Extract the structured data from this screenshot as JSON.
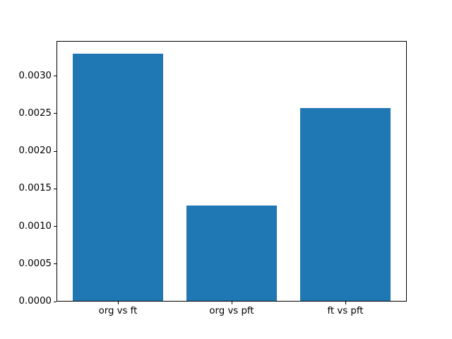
{
  "figure": {
    "background": "#ffffff"
  },
  "chart_data": {
    "type": "bar",
    "categories": [
      "org vs ft",
      "org vs pft",
      "ft vs pft"
    ],
    "values": [
      0.0033,
      0.00128,
      0.00257
    ],
    "title": "",
    "xlabel": "",
    "ylabel": "",
    "ylim": [
      0,
      0.003465
    ],
    "yticks": [
      0.0,
      0.0005,
      0.001,
      0.0015,
      0.002,
      0.0025,
      0.003
    ],
    "ytick_labels": [
      "0.0000",
      "0.0005",
      "0.0010",
      "0.0015",
      "0.0020",
      "0.0025",
      "0.0030"
    ],
    "bar_width": 0.8,
    "bar_color": "#1f77b4",
    "spine_color": "#000000",
    "text_color": "#000000",
    "background": "#ffffff",
    "grid": false,
    "legend": null
  }
}
